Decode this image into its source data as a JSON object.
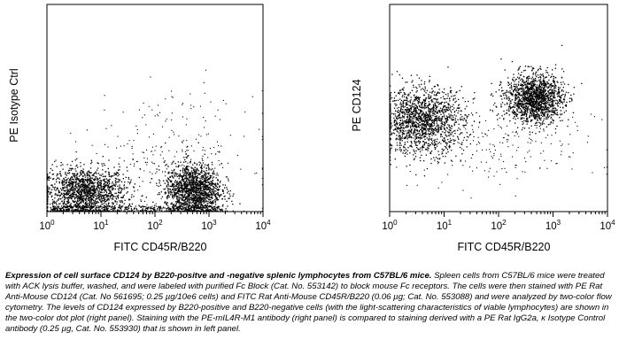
{
  "chart_data": [
    {
      "type": "scatter",
      "panel": "left",
      "xlabel": "FITC CD45R/B220",
      "ylabel": "PE Isotype Ctrl",
      "x_scale": "log",
      "xlim": [
        1,
        10000
      ],
      "ylim": [
        1,
        10000
      ],
      "x_tick_labels": [
        "10⁰",
        "10¹",
        "10²",
        "10³",
        "10⁴"
      ],
      "y_tick_labels": [],
      "populations": [
        {
          "x_center": 5,
          "x_range": [
            1,
            40
          ],
          "y_center": 2.3,
          "y_range": [
            1,
            10
          ],
          "density": "high"
        },
        {
          "x_center": 500,
          "x_range": [
            120,
            1500
          ],
          "y_center": 2.5,
          "y_range": [
            1,
            12
          ],
          "density": "high"
        },
        {
          "x_center": 200,
          "x_range": [
            15,
            3000
          ],
          "y_center": 12,
          "y_range": [
            5,
            300
          ],
          "density": "sparse"
        }
      ]
    },
    {
      "type": "scatter",
      "panel": "right",
      "xlabel": "FITC CD45R/B220",
      "ylabel": "PE CD124",
      "x_scale": "log",
      "xlim": [
        1,
        10000
      ],
      "ylim": [
        1,
        10000
      ],
      "x_tick_labels": [
        "10⁰",
        "10¹",
        "10²",
        "10³",
        "10⁴"
      ],
      "y_tick_labels": [],
      "populations": [
        {
          "x_center": 4,
          "x_range": [
            1,
            40
          ],
          "y_center": 55,
          "y_range": [
            12,
            250
          ],
          "density": "high"
        },
        {
          "x_center": 450,
          "x_range": [
            120,
            1500
          ],
          "y_center": 150,
          "y_range": [
            50,
            500
          ],
          "density": "high"
        },
        {
          "x_center": 60,
          "x_range": [
            2,
            2000
          ],
          "y_center": 20,
          "y_range": [
            3,
            60
          ],
          "density": "sparse"
        }
      ]
    }
  ],
  "caption": {
    "bold": "Expression of cell surface CD124 by B220-positve and -negative splenic lymphocytes from C57BL/6 mice.",
    "text": " Spleen cells from C57BL/6 mice were treated with ACK lysis buffer, washed, and were labeled with purified Fc Block (Cat. No. 553142) to block mouse Fc receptors. The cells were then stained with PE Rat Anti-Mouse CD124 (Cat. No 561695; 0.25 µg/10e6 cells) and FITC Rat Anti-Mouse CD45R/B220 (0.06 µg; Cat. No. 553088) and were analyzed by two-color flow cytometry. The levels of CD124 expressed by B220-positive and B220-negative cells (with the light-scattering characteristics of viable lymphocytes) are shown in the two-color dot plot (right panel). Staining with the PE-mIL4R-M1 antibody (right panel) is compared to staining derived with a PE Rat IgG2a, κ Isotype Control antibody (0.25 µg, Cat. No. 553930) that is shown in left panel."
  }
}
